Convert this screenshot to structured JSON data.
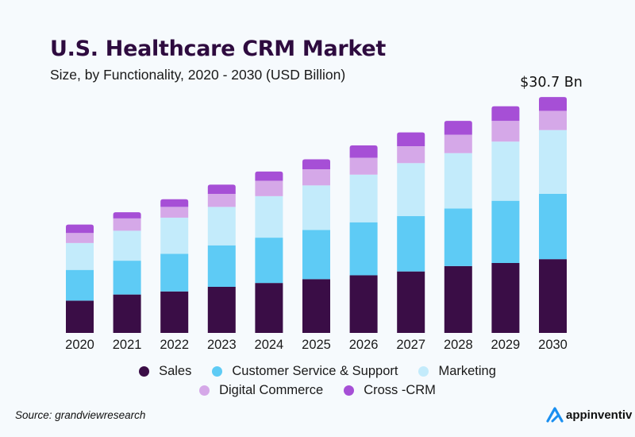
{
  "header": {
    "title": "U.S. Healthcare CRM Market",
    "subtitle": "Size, by Functionality, 2020 - 2030 (USD Billion)"
  },
  "footer": {
    "source": "Source: grandviewresearch",
    "brand": "appinventiv"
  },
  "chart_data": {
    "type": "bar",
    "stacked": true,
    "title": "U.S. Healthcare CRM Market",
    "subtitle": "Size, by Functionality, 2020 - 2030 (USD Billion)",
    "xlabel": "",
    "ylabel": "",
    "ylim": [
      0,
      31
    ],
    "grid": false,
    "legend_position": "bottom",
    "categories": [
      "2020",
      "2021",
      "2022",
      "2023",
      "2024",
      "2025",
      "2026",
      "2027",
      "2028",
      "2029",
      "2030"
    ],
    "series": [
      {
        "name": "Sales",
        "color": "#3a0d46",
        "values": [
          4.2,
          5.0,
          5.4,
          6.0,
          6.5,
          7.0,
          7.5,
          8.0,
          8.7,
          9.1,
          9.6
        ]
      },
      {
        "name": "Customer Service & Support",
        "color": "#5ecbf5",
        "values": [
          4.0,
          4.4,
          4.9,
          5.4,
          5.9,
          6.4,
          6.9,
          7.2,
          7.5,
          8.1,
          8.5
        ]
      },
      {
        "name": "Marketing",
        "color": "#c3ebfb",
        "values": [
          3.5,
          3.9,
          4.7,
          5.0,
          5.4,
          5.8,
          6.2,
          6.9,
          7.2,
          7.7,
          8.3
        ]
      },
      {
        "name": "Digital Commerce",
        "color": "#d5a8e8",
        "values": [
          1.3,
          1.6,
          1.4,
          1.7,
          2.0,
          2.1,
          2.2,
          2.2,
          2.4,
          2.7,
          2.5
        ]
      },
      {
        "name": "Cross -CRM",
        "color": "#a64fd6",
        "values": [
          1.1,
          0.8,
          1.0,
          1.2,
          1.2,
          1.3,
          1.6,
          1.8,
          1.8,
          1.9,
          1.8
        ]
      }
    ],
    "annotations": [
      {
        "category": "2030",
        "text": "$30.7 Bn"
      }
    ]
  }
}
